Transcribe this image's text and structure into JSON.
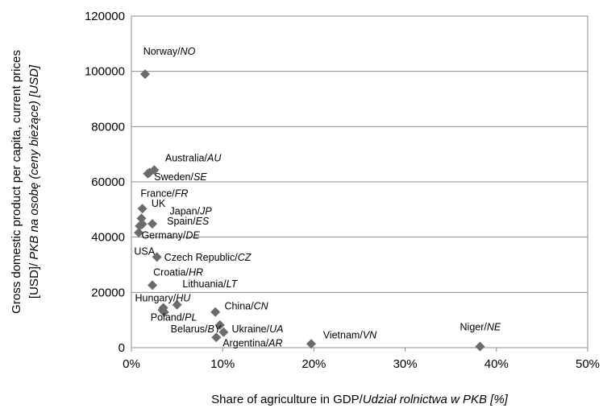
{
  "chart_data": {
    "type": "scatter",
    "xlabel": "Share of agriculture in GDP/",
    "xlabel_italic": "Udział rolnictwa w PKB [%]",
    "ylabel_line1": "Gross domestic product per capita, current prices",
    "ylabel_line2": "[USD]/ ",
    "ylabel_line2_italic": "PKB na osobę (ceny bieżące) [USD]",
    "xlim": [
      0,
      50
    ],
    "ylim": [
      0,
      120000
    ],
    "x_ticks": [
      0,
      10,
      20,
      30,
      40,
      50
    ],
    "x_tick_labels": [
      "0%",
      "10%",
      "20%",
      "30%",
      "40%",
      "50%"
    ],
    "y_ticks": [
      0,
      20000,
      40000,
      60000,
      80000,
      100000,
      120000
    ],
    "y_tick_labels": [
      "0",
      "20000",
      "40000",
      "60000",
      "80000",
      "100000",
      "120000"
    ],
    "grid": "horizontal",
    "marker": "diamond",
    "marker_color": "#6b6b6b",
    "points": [
      {
        "x": 1.5,
        "y": 99000
      },
      {
        "x": 2.5,
        "y": 64300
      },
      {
        "x": 2.0,
        "y": 63400
      },
      {
        "x": 1.8,
        "y": 63000
      },
      {
        "x": 1.2,
        "y": 50300
      },
      {
        "x": 1.1,
        "y": 46800
      },
      {
        "x": 1.2,
        "y": 44700
      },
      {
        "x": 2.3,
        "y": 44800
      },
      {
        "x": 0.8,
        "y": 41600
      },
      {
        "x": 0.9,
        "y": 44000
      },
      {
        "x": 2.8,
        "y": 32800
      },
      {
        "x": 2.3,
        "y": 22600
      },
      {
        "x": 3.5,
        "y": 14400
      },
      {
        "x": 3.4,
        "y": 13600
      },
      {
        "x": 3.6,
        "y": 12800
      },
      {
        "x": 5.0,
        "y": 15500
      },
      {
        "x": 9.2,
        "y": 12900
      },
      {
        "x": 9.7,
        "y": 8200
      },
      {
        "x": 10.1,
        "y": 5600
      },
      {
        "x": 9.3,
        "y": 3700
      },
      {
        "x": 19.7,
        "y": 1400
      },
      {
        "x": 38.2,
        "y": 400
      }
    ],
    "annotations": [
      {
        "text": "Norway/",
        "italic": "NO",
        "x": 1.3,
        "y": 106000
      },
      {
        "text": "Australia/",
        "italic": "AU",
        "x": 3.7,
        "y": 67500
      },
      {
        "text": "Sweden/",
        "italic": "SE",
        "x": 2.5,
        "y": 60600
      },
      {
        "text": "France/",
        "italic": "FR",
        "x": 1.0,
        "y": 54600
      },
      {
        "text": "UK",
        "italic": "",
        "x": 2.2,
        "y": 50900
      },
      {
        "text": "Japan/",
        "italic": "JP",
        "x": 4.2,
        "y": 48200
      },
      {
        "text": "Spain/",
        "italic": "ES",
        "x": 3.9,
        "y": 44600
      },
      {
        "text": "Germany/",
        "italic": "DE",
        "x": 1.1,
        "y": 39500
      },
      {
        "text": "USA",
        "italic": "",
        "x": 0.3,
        "y": 33600
      },
      {
        "text": "Czech Republic/",
        "italic": "CZ",
        "x": 3.6,
        "y": 31400
      },
      {
        "text": "Croatia/",
        "italic": "HR",
        "x": 2.4,
        "y": 26100
      },
      {
        "text": "Lithuania/",
        "italic": "LT",
        "x": 5.6,
        "y": 21900
      },
      {
        "text": "Hungary/",
        "italic": "HU",
        "x": 0.4,
        "y": 16800
      },
      {
        "text": "Poland/",
        "italic": "PL",
        "x": 2.1,
        "y": 9800
      },
      {
        "text": "China/",
        "italic": "CN",
        "x": 10.2,
        "y": 13900
      },
      {
        "text": "Belarus/",
        "italic": "BY",
        "x": 4.3,
        "y": 5600
      },
      {
        "text": "Ukraine/",
        "italic": "UA",
        "x": 11.0,
        "y": 5600
      },
      {
        "text": "Argentina/",
        "italic": "AR",
        "x": 10.0,
        "y": 500
      },
      {
        "text": "Vietnam/",
        "italic": "VN",
        "x": 21.0,
        "y": 3300
      },
      {
        "text": "Niger/",
        "italic": "NE",
        "x": 36.0,
        "y": 6200
      }
    ]
  }
}
